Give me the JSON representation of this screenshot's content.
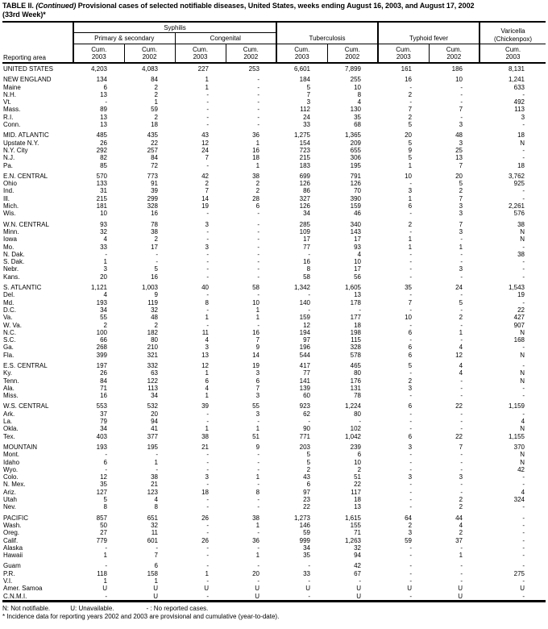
{
  "title": {
    "part1": "TABLE II.",
    "continued": "(Continued)",
    "part2": "Provisional cases of selected notifiable diseases, United States, weeks ending August 16, 2003, and August 17, 2002",
    "line2": "(33rd Week)*"
  },
  "table": {
    "reporting_area_label": "Reporting area",
    "groups": {
      "syphilis": "Syphilis",
      "primary_secondary": "Primary & secondary",
      "congenital": "Congenital",
      "tuberculosis": "Tuberculosis",
      "typhoid_fever": "Typhoid fever",
      "varicella_line1": "Varicella",
      "varicella_line2": "(Chickenpox)"
    },
    "cols": [
      {
        "label": "Cum.",
        "year": "2003"
      },
      {
        "label": "Cum.",
        "year": "2002"
      },
      {
        "label": "Cum.",
        "year": "2003"
      },
      {
        "label": "Cum.",
        "year": "2002"
      },
      {
        "label": "Cum.",
        "year": "2003"
      },
      {
        "label": "Cum.",
        "year": "2002"
      },
      {
        "label": "Cum.",
        "year": "2003"
      },
      {
        "label": "Cum.",
        "year": "2002"
      },
      {
        "label": "Cum.",
        "year": "2003"
      }
    ],
    "rows": [
      {
        "area": "UNITED STATES",
        "spacer_before": false,
        "values": [
          "4,203",
          "4,083",
          "227",
          "253",
          "6,601",
          "7,899",
          "161",
          "186",
          "8,131"
        ]
      },
      {
        "area": "NEW ENGLAND",
        "spacer_before": true,
        "values": [
          "134",
          "84",
          "1",
          "-",
          "184",
          "255",
          "16",
          "10",
          "1,241"
        ]
      },
      {
        "area": "Maine",
        "spacer_before": false,
        "values": [
          "6",
          "2",
          "1",
          "-",
          "5",
          "10",
          "-",
          "-",
          "633"
        ]
      },
      {
        "area": "N.H.",
        "spacer_before": false,
        "values": [
          "13",
          "2",
          "-",
          "-",
          "7",
          "8",
          "2",
          "-",
          "-"
        ]
      },
      {
        "area": "Vt.",
        "spacer_before": false,
        "values": [
          "-",
          "1",
          "-",
          "-",
          "3",
          "4",
          "-",
          "-",
          "492"
        ]
      },
      {
        "area": "Mass.",
        "spacer_before": false,
        "values": [
          "89",
          "59",
          "-",
          "-",
          "112",
          "130",
          "7",
          "7",
          "113"
        ]
      },
      {
        "area": "R.I.",
        "spacer_before": false,
        "values": [
          "13",
          "2",
          "-",
          "-",
          "24",
          "35",
          "2",
          "-",
          "3"
        ]
      },
      {
        "area": "Conn.",
        "spacer_before": false,
        "values": [
          "13",
          "18",
          "-",
          "-",
          "33",
          "68",
          "5",
          "3",
          "-"
        ]
      },
      {
        "area": "MID. ATLANTIC",
        "spacer_before": true,
        "values": [
          "485",
          "435",
          "43",
          "36",
          "1,275",
          "1,365",
          "20",
          "48",
          "18"
        ]
      },
      {
        "area": "Upstate N.Y.",
        "spacer_before": false,
        "values": [
          "26",
          "22",
          "12",
          "1",
          "154",
          "209",
          "5",
          "3",
          "N"
        ]
      },
      {
        "area": "N.Y. City",
        "spacer_before": false,
        "values": [
          "292",
          "257",
          "24",
          "16",
          "723",
          "655",
          "9",
          "25",
          "-"
        ]
      },
      {
        "area": "N.J.",
        "spacer_before": false,
        "values": [
          "82",
          "84",
          "7",
          "18",
          "215",
          "306",
          "5",
          "13",
          "-"
        ]
      },
      {
        "area": "Pa.",
        "spacer_before": false,
        "values": [
          "85",
          "72",
          "-",
          "1",
          "183",
          "195",
          "1",
          "7",
          "18"
        ]
      },
      {
        "area": "E.N. CENTRAL",
        "spacer_before": true,
        "values": [
          "570",
          "773",
          "42",
          "38",
          "699",
          "791",
          "10",
          "20",
          "3,762"
        ]
      },
      {
        "area": "Ohio",
        "spacer_before": false,
        "values": [
          "133",
          "91",
          "2",
          "2",
          "126",
          "126",
          "-",
          "5",
          "925"
        ]
      },
      {
        "area": "Ind.",
        "spacer_before": false,
        "values": [
          "31",
          "39",
          "7",
          "2",
          "86",
          "70",
          "3",
          "2",
          "-"
        ]
      },
      {
        "area": "Ill.",
        "spacer_before": false,
        "values": [
          "215",
          "299",
          "14",
          "28",
          "327",
          "390",
          "1",
          "7",
          "-"
        ]
      },
      {
        "area": "Mich.",
        "spacer_before": false,
        "values": [
          "181",
          "328",
          "19",
          "6",
          "126",
          "159",
          "6",
          "3",
          "2,261"
        ]
      },
      {
        "area": "Wis.",
        "spacer_before": false,
        "values": [
          "10",
          "16",
          "-",
          "-",
          "34",
          "46",
          "-",
          "3",
          "576"
        ]
      },
      {
        "area": "W.N. CENTRAL",
        "spacer_before": true,
        "values": [
          "93",
          "78",
          "3",
          "-",
          "285",
          "340",
          "2",
          "7",
          "38"
        ]
      },
      {
        "area": "Minn.",
        "spacer_before": false,
        "values": [
          "32",
          "38",
          "-",
          "-",
          "109",
          "143",
          "-",
          "3",
          "N"
        ]
      },
      {
        "area": "Iowa",
        "spacer_before": false,
        "values": [
          "4",
          "2",
          "-",
          "-",
          "17",
          "17",
          "1",
          "-",
          "N"
        ]
      },
      {
        "area": "Mo.",
        "spacer_before": false,
        "values": [
          "33",
          "17",
          "3",
          "-",
          "77",
          "93",
          "1",
          "1",
          "-"
        ]
      },
      {
        "area": "N. Dak.",
        "spacer_before": false,
        "values": [
          "-",
          "-",
          "-",
          "-",
          "-",
          "4",
          "-",
          "-",
          "38"
        ]
      },
      {
        "area": "S. Dak.",
        "spacer_before": false,
        "values": [
          "1",
          "-",
          "-",
          "-",
          "16",
          "10",
          "-",
          "-",
          "-"
        ]
      },
      {
        "area": "Nebr.",
        "spacer_before": false,
        "values": [
          "3",
          "5",
          "-",
          "-",
          "8",
          "17",
          "-",
          "3",
          "-"
        ]
      },
      {
        "area": "Kans.",
        "spacer_before": false,
        "values": [
          "20",
          "16",
          "-",
          "-",
          "58",
          "56",
          "-",
          "-",
          "-"
        ]
      },
      {
        "area": "S. ATLANTIC",
        "spacer_before": true,
        "values": [
          "1,121",
          "1,003",
          "40",
          "58",
          "1,342",
          "1,605",
          "35",
          "24",
          "1,543"
        ]
      },
      {
        "area": "Del.",
        "spacer_before": false,
        "values": [
          "4",
          "9",
          "-",
          "-",
          "-",
          "13",
          "-",
          "-",
          "19"
        ]
      },
      {
        "area": "Md.",
        "spacer_before": false,
        "values": [
          "193",
          "119",
          "8",
          "10",
          "140",
          "178",
          "7",
          "5",
          "-"
        ]
      },
      {
        "area": "D.C.",
        "spacer_before": false,
        "values": [
          "34",
          "32",
          "-",
          "1",
          "-",
          "-",
          "-",
          "-",
          "22"
        ]
      },
      {
        "area": "Va.",
        "spacer_before": false,
        "values": [
          "55",
          "48",
          "1",
          "1",
          "159",
          "177",
          "10",
          "2",
          "427"
        ]
      },
      {
        "area": "W. Va.",
        "spacer_before": false,
        "values": [
          "2",
          "2",
          "-",
          "-",
          "12",
          "18",
          "-",
          "-",
          "907"
        ]
      },
      {
        "area": "N.C.",
        "spacer_before": false,
        "values": [
          "100",
          "182",
          "11",
          "16",
          "194",
          "198",
          "6",
          "1",
          "N"
        ]
      },
      {
        "area": "S.C.",
        "spacer_before": false,
        "values": [
          "66",
          "80",
          "4",
          "7",
          "97",
          "115",
          "-",
          "-",
          "168"
        ]
      },
      {
        "area": "Ga.",
        "spacer_before": false,
        "values": [
          "268",
          "210",
          "3",
          "9",
          "196",
          "328",
          "6",
          "4",
          "-"
        ]
      },
      {
        "area": "Fla.",
        "spacer_before": false,
        "values": [
          "399",
          "321",
          "13",
          "14",
          "544",
          "578",
          "6",
          "12",
          "N"
        ]
      },
      {
        "area": "E.S. CENTRAL",
        "spacer_before": true,
        "values": [
          "197",
          "332",
          "12",
          "19",
          "417",
          "465",
          "5",
          "4",
          "-"
        ]
      },
      {
        "area": "Ky.",
        "spacer_before": false,
        "values": [
          "26",
          "63",
          "1",
          "3",
          "77",
          "80",
          "-",
          "4",
          "N"
        ]
      },
      {
        "area": "Tenn.",
        "spacer_before": false,
        "values": [
          "84",
          "122",
          "6",
          "6",
          "141",
          "176",
          "2",
          "-",
          "N"
        ]
      },
      {
        "area": "Ala.",
        "spacer_before": false,
        "values": [
          "71",
          "113",
          "4",
          "7",
          "139",
          "131",
          "3",
          "-",
          "-"
        ]
      },
      {
        "area": "Miss.",
        "spacer_before": false,
        "values": [
          "16",
          "34",
          "1",
          "3",
          "60",
          "78",
          "-",
          "-",
          "-"
        ]
      },
      {
        "area": "W.S. CENTRAL",
        "spacer_before": true,
        "values": [
          "553",
          "532",
          "39",
          "55",
          "923",
          "1,224",
          "6",
          "22",
          "1,159"
        ]
      },
      {
        "area": "Ark.",
        "spacer_before": false,
        "values": [
          "37",
          "20",
          "-",
          "3",
          "62",
          "80",
          "-",
          "-",
          "-"
        ]
      },
      {
        "area": "La.",
        "spacer_before": false,
        "values": [
          "79",
          "94",
          "-",
          "-",
          "-",
          "-",
          "-",
          "-",
          "4"
        ]
      },
      {
        "area": "Okla.",
        "spacer_before": false,
        "values": [
          "34",
          "41",
          "1",
          "1",
          "90",
          "102",
          "-",
          "-",
          "N"
        ]
      },
      {
        "area": "Tex.",
        "spacer_before": false,
        "values": [
          "403",
          "377",
          "38",
          "51",
          "771",
          "1,042",
          "6",
          "22",
          "1,155"
        ]
      },
      {
        "area": "MOUNTAIN",
        "spacer_before": true,
        "values": [
          "193",
          "195",
          "21",
          "9",
          "203",
          "239",
          "3",
          "7",
          "370"
        ]
      },
      {
        "area": "Mont.",
        "spacer_before": false,
        "values": [
          "-",
          "-",
          "-",
          "-",
          "5",
          "6",
          "-",
          "-",
          "N"
        ]
      },
      {
        "area": "Idaho",
        "spacer_before": false,
        "values": [
          "6",
          "1",
          "-",
          "-",
          "5",
          "10",
          "-",
          "-",
          "N"
        ]
      },
      {
        "area": "Wyo.",
        "spacer_before": false,
        "values": [
          "-",
          "-",
          "-",
          "-",
          "2",
          "2",
          "-",
          "-",
          "42"
        ]
      },
      {
        "area": "Colo.",
        "spacer_before": false,
        "values": [
          "12",
          "38",
          "3",
          "1",
          "43",
          "51",
          "3",
          "3",
          "-"
        ]
      },
      {
        "area": "N. Mex.",
        "spacer_before": false,
        "values": [
          "35",
          "21",
          "-",
          "-",
          "6",
          "22",
          "-",
          "-",
          "-"
        ]
      },
      {
        "area": "Ariz.",
        "spacer_before": false,
        "values": [
          "127",
          "123",
          "18",
          "8",
          "97",
          "117",
          "-",
          "-",
          "4"
        ]
      },
      {
        "area": "Utah",
        "spacer_before": false,
        "values": [
          "5",
          "4",
          "-",
          "-",
          "23",
          "18",
          "-",
          "2",
          "324"
        ]
      },
      {
        "area": "Nev.",
        "spacer_before": false,
        "values": [
          "8",
          "8",
          "-",
          "-",
          "22",
          "13",
          "-",
          "2",
          "-"
        ]
      },
      {
        "area": "PACIFIC",
        "spacer_before": true,
        "values": [
          "857",
          "651",
          "26",
          "38",
          "1,273",
          "1,615",
          "64",
          "44",
          "-"
        ]
      },
      {
        "area": "Wash.",
        "spacer_before": false,
        "values": [
          "50",
          "32",
          "-",
          "1",
          "146",
          "155",
          "2",
          "4",
          "-"
        ]
      },
      {
        "area": "Oreg.",
        "spacer_before": false,
        "values": [
          "27",
          "11",
          "-",
          "-",
          "59",
          "71",
          "3",
          "2",
          "-"
        ]
      },
      {
        "area": "Calif.",
        "spacer_before": false,
        "values": [
          "779",
          "601",
          "26",
          "36",
          "999",
          "1,263",
          "59",
          "37",
          "-"
        ]
      },
      {
        "area": "Alaska",
        "spacer_before": false,
        "values": [
          "-",
          "-",
          "-",
          "-",
          "34",
          "32",
          "-",
          "-",
          "-"
        ]
      },
      {
        "area": "Hawaii",
        "spacer_before": false,
        "values": [
          "1",
          "7",
          "-",
          "1",
          "35",
          "94",
          "-",
          "1",
          "-"
        ]
      },
      {
        "area": "Guam",
        "spacer_before": true,
        "values": [
          "-",
          "6",
          "-",
          "-",
          "-",
          "42",
          "-",
          "-",
          "-"
        ]
      },
      {
        "area": "P.R.",
        "spacer_before": false,
        "values": [
          "118",
          "158",
          "1",
          "20",
          "33",
          "67",
          "-",
          "-",
          "275"
        ]
      },
      {
        "area": "V.I.",
        "spacer_before": false,
        "values": [
          "1",
          "1",
          "-",
          "-",
          "-",
          "-",
          "-",
          "-",
          "-"
        ]
      },
      {
        "area": "Amer. Samoa",
        "spacer_before": false,
        "values": [
          "U",
          "U",
          "U",
          "U",
          "U",
          "U",
          "U",
          "U",
          "U"
        ]
      },
      {
        "area": "C.N.M.I.",
        "spacer_before": false,
        "values": [
          "-",
          "U",
          "-",
          "U",
          "-",
          "U",
          "-",
          "U",
          "-"
        ]
      }
    ]
  },
  "footnotes": {
    "n": "N: Not notifiable.",
    "u": "U: Unavailable.",
    "dash": "- : No reported cases.",
    "asterisk": "* Incidence data for reporting years 2002 and 2003 are provisional and cumulative (year-to-date)."
  }
}
